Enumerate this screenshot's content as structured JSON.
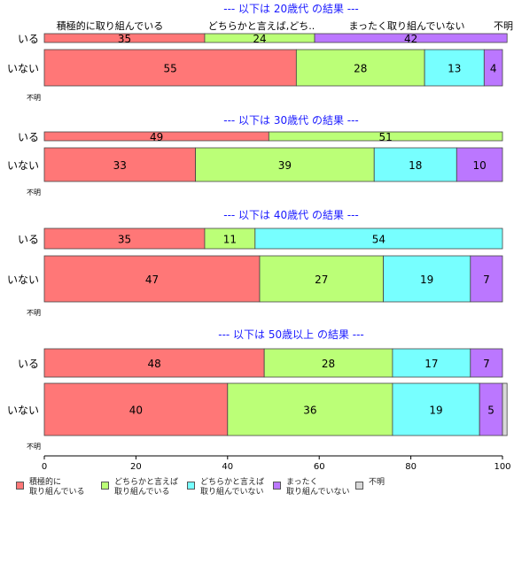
{
  "chart_data": {
    "type": "bar",
    "orientation": "horizontal",
    "stacked": true,
    "xlim": [
      0,
      100
    ],
    "xticks": [
      "0",
      "20",
      "40",
      "60",
      "80",
      "100"
    ],
    "legend_position": "bottom",
    "series": [
      {
        "name": "積極的に\n取り組んでいる",
        "color": "#FF7777"
      },
      {
        "name": "どちらかと言えば\n取り組んでいる",
        "color": "#BBFF77"
      },
      {
        "name": "どちらかと言えば\n取り組んでいない",
        "color": "#77FFFF"
      },
      {
        "name": "まったく\n取り組んでいない",
        "color": "#BB77FF"
      },
      {
        "name": "不明",
        "color": "#D8D8D8"
      }
    ],
    "panels": [
      {
        "title": "--- 以下は 20歳代 の結果 ---",
        "categories": [
          "いる",
          "いない",
          "不明"
        ],
        "values": [
          [
            35,
            24,
            0,
            42,
            0
          ],
          [
            55,
            28,
            13,
            4,
            0
          ],
          null
        ],
        "top_labels": [
          "積極的に取り組んでいる",
          "どちらかと言えば,どち..",
          "まったく取り組んでいない",
          "不明"
        ]
      },
      {
        "title": "--- 以下は 30歳代 の結果 ---",
        "categories": [
          "いる",
          "いない",
          "不明"
        ],
        "values": [
          [
            49,
            51,
            0,
            0,
            0
          ],
          [
            33,
            39,
            18,
            10,
            0
          ],
          null
        ]
      },
      {
        "title": "--- 以下は 40歳代 の結果 ---",
        "categories": [
          "いる",
          "いない",
          "不明"
        ],
        "values": [
          [
            35,
            11,
            54,
            0,
            0
          ],
          [
            47,
            27,
            19,
            7,
            0
          ],
          null
        ]
      },
      {
        "title": "--- 以下は 50歳以上 の結果 ---",
        "categories": [
          "いる",
          "いない",
          "不明"
        ],
        "values": [
          [
            48,
            28,
            17,
            7,
            0
          ],
          [
            40,
            36,
            19,
            5,
            1
          ],
          null
        ]
      }
    ]
  }
}
